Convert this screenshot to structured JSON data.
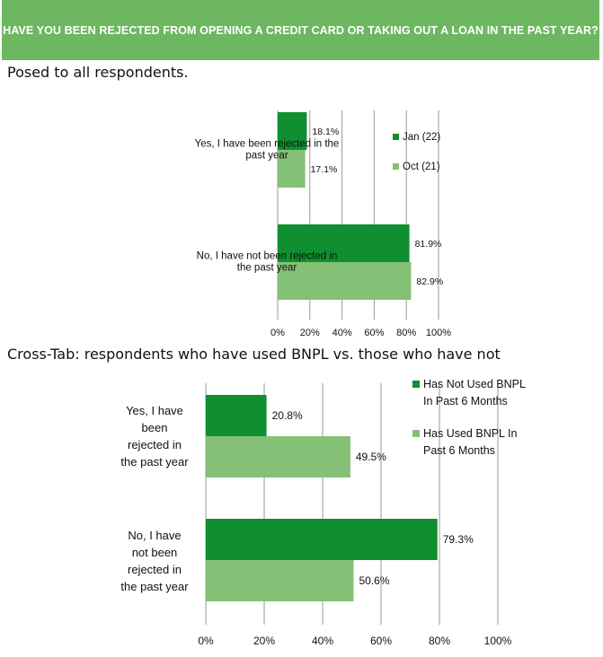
{
  "banner": {
    "title": "HAVE YOU BEEN REJECTED FROM OPENING A CREDIT CARD OR TAKING OUT A LOAN IN THE PAST YEAR?"
  },
  "section1": {
    "subtitle": "Posed to all respondents."
  },
  "section2": {
    "subtitle": "Cross-Tab: respondents who have used BNPL vs. those who have not"
  },
  "colors": {
    "banner": "#6db761",
    "dark_green": "#0f8f2f",
    "light_green": "#84c075",
    "grid": "#9a9a9a"
  },
  "chart_data": [
    {
      "type": "bar",
      "orientation": "horizontal",
      "categories": [
        "Yes, I have been rejected in the past year",
        "No, I have not been rejected in the past year"
      ],
      "category_lines": [
        [
          "Yes, I have been rejected in the",
          "past year"
        ],
        [
          "No, I have not been rejected in",
          "the past year"
        ]
      ],
      "series": [
        {
          "name": "Jan (22)",
          "values": [
            18.1,
            81.9
          ],
          "color": "#0f8f2f"
        },
        {
          "name": "Oct (21)",
          "values": [
            17.1,
            82.9
          ],
          "color": "#84c075"
        }
      ],
      "value_labels": [
        [
          "18.1%",
          "81.9%"
        ],
        [
          "17.1%",
          "82.9%"
        ]
      ],
      "tick_labels": [
        "0%",
        "20%",
        "40%",
        "60%",
        "80%",
        "100%"
      ],
      "xlim": [
        0,
        100
      ],
      "grid": true,
      "legend_position": "right"
    },
    {
      "type": "bar",
      "orientation": "horizontal",
      "categories": [
        "Yes, I have been rejected in the past year",
        "No, I have not been rejected in the past year"
      ],
      "category_lines": [
        [
          "Yes, I have",
          "been",
          "rejected in",
          "the past year"
        ],
        [
          "No, I have",
          "not been",
          "rejected in",
          "the past year"
        ]
      ],
      "series": [
        {
          "name": "Has Not Used BNPL In Past 6 Months",
          "legend_lines": [
            "Has Not Used BNPL",
            "In Past 6 Months"
          ],
          "values": [
            20.8,
            79.3
          ],
          "color": "#0f8f2f"
        },
        {
          "name": "Has Used BNPL In Past 6 Months",
          "legend_lines": [
            "Has Used BNPL In",
            "Past 6 Months"
          ],
          "values": [
            49.5,
            50.6
          ],
          "color": "#84c075"
        }
      ],
      "value_labels": [
        [
          "20.8%",
          "79.3%"
        ],
        [
          "49.5%",
          "50.6%"
        ]
      ],
      "tick_labels": [
        "0%",
        "20%",
        "40%",
        "60%",
        "80%",
        "100%"
      ],
      "xlim": [
        0,
        100
      ],
      "grid": true,
      "legend_position": "top-right"
    }
  ]
}
